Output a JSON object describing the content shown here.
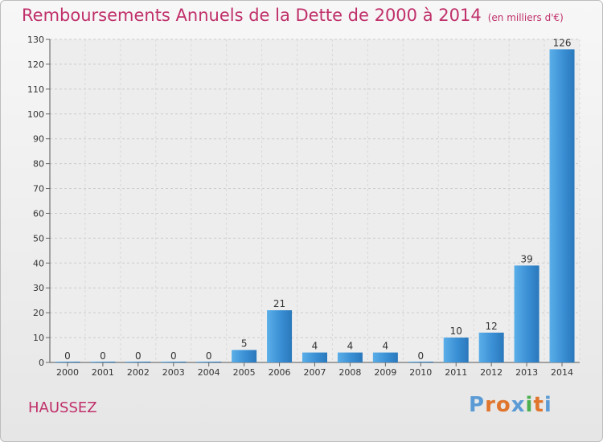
{
  "chart_data": {
    "type": "bar",
    "title": "Remboursements Annuels de la Dette de 2000 à 2014",
    "unit_label": "(en milliers d'€)",
    "categories": [
      "2000",
      "2001",
      "2002",
      "2003",
      "2004",
      "2005",
      "2006",
      "2007",
      "2008",
      "2009",
      "2010",
      "2011",
      "2012",
      "2013",
      "2014"
    ],
    "values": [
      0,
      0,
      0,
      0,
      0,
      5,
      21,
      4,
      4,
      4,
      0,
      10,
      12,
      39,
      126
    ],
    "ylim": [
      0,
      130
    ],
    "yticks": [
      0,
      10,
      20,
      30,
      40,
      50,
      60,
      70,
      80,
      90,
      100,
      110,
      120,
      130
    ],
    "grid": true,
    "bar_color": "#3a8fd4",
    "label_color": "#333333",
    "title_color": "#c0306a"
  },
  "footer": {
    "place": "HAUSSEZ",
    "logo": "Proxiti",
    "logo_colors": [
      "#5b9bd5",
      "#e0752d",
      "#e0752d",
      "#5b9bd5",
      "#4caf50",
      "#e0752d",
      "#5b9bd5"
    ]
  }
}
